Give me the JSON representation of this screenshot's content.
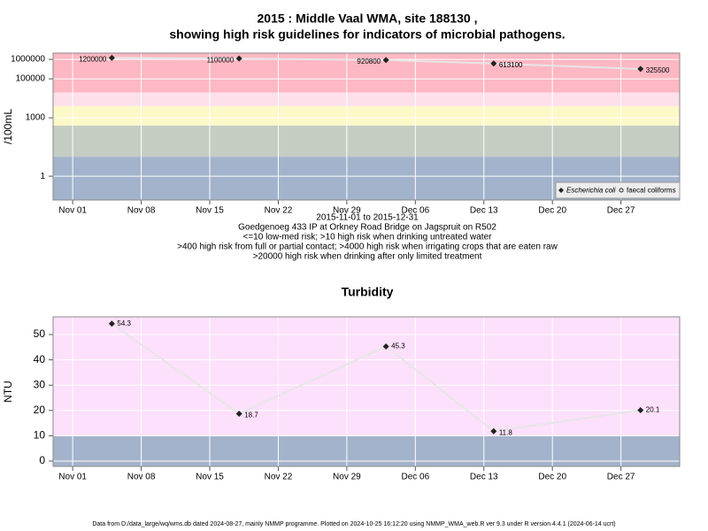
{
  "chart_data": [
    {
      "type": "line",
      "title": [
        "2015 : Middle Vaal WMA, site 188130 ,",
        "showing high risk guidelines for indicators of microbial pathogens."
      ],
      "ylabel": "/100mL",
      "log_y": true,
      "grid": true,
      "legend": "bottom-right",
      "x": [
        "2015-11-05",
        "2015-11-18",
        "2015-12-03",
        "2015-12-14",
        "2015-12-29"
      ],
      "series": [
        {
          "name": "Escherichia coli",
          "color": "#222222",
          "line_color": "#e6e6e6",
          "values": [
            1200000,
            1100000,
            920800,
            613100,
            325500
          ]
        },
        {
          "name": "faecal coliforms",
          "color": "#222222",
          "line_color": "#e6e6e6",
          "values": [
            null,
            null,
            null,
            null,
            null
          ]
        }
      ],
      "xlim": [
        "2015-10-30",
        "2016-01-02"
      ],
      "xticks": [
        {
          "value": "2015-11-01",
          "label": "Nov 01"
        },
        {
          "value": "2015-11-08",
          "label": "Nov 08"
        },
        {
          "value": "2015-11-15",
          "label": "Nov 15"
        },
        {
          "value": "2015-11-22",
          "label": "Nov 22"
        },
        {
          "value": "2015-11-29",
          "label": "Nov 29"
        },
        {
          "value": "2015-12-06",
          "label": "Dec 06"
        },
        {
          "value": "2015-12-13",
          "label": "Dec 13"
        },
        {
          "value": "2015-12-20",
          "label": "Dec 20"
        },
        {
          "value": "2015-12-27",
          "label": "Dec 27"
        }
      ],
      "ylim": [
        0.06,
        2100000
      ],
      "yticks": [
        1,
        1000,
        100000,
        1000000
      ],
      "bands": [
        {
          "from": 0.06,
          "to": 10,
          "color": "#a3b3cc"
        },
        {
          "from": 10,
          "to": 400,
          "color": "#c5cdc3"
        },
        {
          "from": 400,
          "to": 4000,
          "color": "#fdf8c8"
        },
        {
          "from": 4000,
          "to": 20000,
          "color": "#fde0ea"
        },
        {
          "from": 20000,
          "to": 2100000,
          "color": "#fdb8c3"
        }
      ],
      "annotations": [
        "2015-11-01 to 2015-12-31",
        "Goedgenoeg 433 IP at Orkney Road Bridge on Jagspruit on R502",
        "<=10 low-med risk; >10 high risk when drinking untreated water",
        ">400 high risk from full or partial contact; >4000 high risk when irrigating crops that are eaten raw",
        ">20000 high risk when drinking after only limited treatment"
      ]
    },
    {
      "type": "line",
      "title": [
        "Turbidity"
      ],
      "ylabel": "NTU",
      "grid": true,
      "x": [
        "2015-11-05",
        "2015-11-18",
        "2015-12-03",
        "2015-12-14",
        "2015-12-29"
      ],
      "series": [
        {
          "name": "Turbidity",
          "color": "#222222",
          "line_color": "#e6e6e6",
          "values": [
            54.3,
            18.7,
            45.3,
            11.8,
            20.1
          ]
        }
      ],
      "xlim": [
        "2015-10-30",
        "2016-01-02"
      ],
      "xticks": [
        {
          "value": "2015-11-01",
          "label": "Nov 01"
        },
        {
          "value": "2015-11-08",
          "label": "Nov 08"
        },
        {
          "value": "2015-11-15",
          "label": "Nov 15"
        },
        {
          "value": "2015-11-22",
          "label": "Nov 22"
        },
        {
          "value": "2015-11-29",
          "label": "Nov 29"
        },
        {
          "value": "2015-12-06",
          "label": "Dec 06"
        },
        {
          "value": "2015-12-13",
          "label": "Dec 13"
        },
        {
          "value": "2015-12-20",
          "label": "Dec 20"
        },
        {
          "value": "2015-12-27",
          "label": "Dec 27"
        }
      ],
      "ylim": [
        -2.1,
        57
      ],
      "yticks": [
        0,
        10,
        20,
        30,
        40,
        50
      ],
      "bands": [
        {
          "from": -2.1,
          "to": 10,
          "color": "#a3b3cc"
        },
        {
          "from": 10,
          "to": 57,
          "color": "#fde0fb"
        }
      ]
    }
  ],
  "footer": "Data from D:/data_large/wq/wms.db dated 2024-08-27, mainly NMMP programme. Plotted on 2024-10-25 16:12:20 using NMMP_WMA_web.R ver 9.3 under R version 4.4.1 (2024-06-14 ucrt)"
}
